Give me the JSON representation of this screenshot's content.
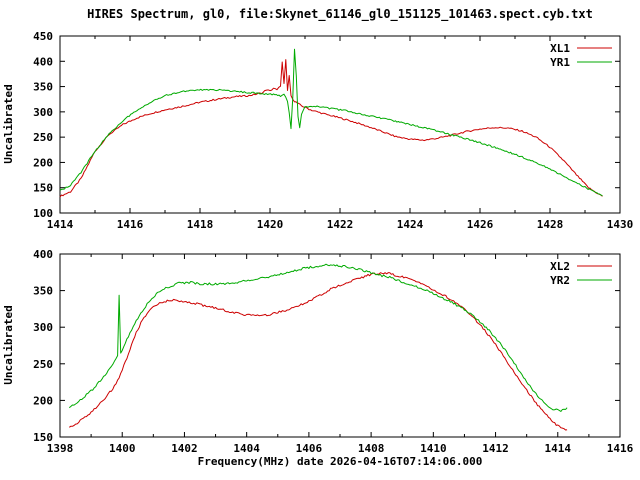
{
  "title": "HIRES Spectrum, gl0, file:Skynet_61146_gl0_151125_101463.spect.cyb.txt",
  "colors": {
    "red": "#cc0000",
    "green": "#00aa00",
    "axis": "#000000",
    "background": "#ffffff"
  },
  "chart_data": [
    {
      "type": "line",
      "title": "",
      "xlabel": "",
      "ylabel": "Uncalibrated",
      "xlim": [
        1414,
        1430
      ],
      "ylim": [
        100,
        450
      ],
      "xticks": [
        1414,
        1416,
        1418,
        1420,
        1422,
        1424,
        1426,
        1428,
        1430
      ],
      "yticks": [
        100,
        150,
        200,
        250,
        300,
        350,
        400,
        450
      ],
      "grid": false,
      "legend_position": "top-right",
      "series": [
        {
          "name": "XL1",
          "color": "#cc0000",
          "points": [
            [
              1414.0,
              133
            ],
            [
              1414.3,
              142
            ],
            [
              1414.6,
              168
            ],
            [
              1415.0,
              222
            ],
            [
              1415.4,
              255
            ],
            [
              1415.8,
              275
            ],
            [
              1416.2,
              288
            ],
            [
              1416.6,
              297
            ],
            [
              1417.0,
              304
            ],
            [
              1417.5,
              311
            ],
            [
              1418.0,
              319
            ],
            [
              1418.5,
              325
            ],
            [
              1419.0,
              330
            ],
            [
              1419.4,
              332
            ],
            [
              1419.8,
              338
            ],
            [
              1419.9,
              344
            ],
            [
              1420.0,
              341
            ],
            [
              1420.1,
              347
            ],
            [
              1420.2,
              343
            ],
            [
              1420.3,
              352
            ],
            [
              1420.35,
              398
            ],
            [
              1420.4,
              355
            ],
            [
              1420.45,
              402
            ],
            [
              1420.5,
              342
            ],
            [
              1420.55,
              372
            ],
            [
              1420.6,
              331
            ],
            [
              1420.7,
              321
            ],
            [
              1420.9,
              312
            ],
            [
              1421.2,
              303
            ],
            [
              1421.6,
              295
            ],
            [
              1422.0,
              288
            ],
            [
              1422.4,
              280
            ],
            [
              1422.8,
              271
            ],
            [
              1423.2,
              261
            ],
            [
              1423.6,
              251
            ],
            [
              1424.0,
              246
            ],
            [
              1424.4,
              244
            ],
            [
              1424.8,
              248
            ],
            [
              1425.2,
              254
            ],
            [
              1425.6,
              261
            ],
            [
              1426.0,
              266
            ],
            [
              1426.4,
              269
            ],
            [
              1426.8,
              268
            ],
            [
              1427.2,
              262
            ],
            [
              1427.6,
              250
            ],
            [
              1428.0,
              230
            ],
            [
              1428.4,
              203
            ],
            [
              1428.8,
              172
            ],
            [
              1429.1,
              150
            ],
            [
              1429.4,
              137
            ],
            [
              1429.5,
              133
            ]
          ]
        },
        {
          "name": "YR1",
          "color": "#00aa00",
          "points": [
            [
              1414.0,
              144
            ],
            [
              1414.3,
              155
            ],
            [
              1414.6,
              180
            ],
            [
              1415.0,
              222
            ],
            [
              1415.4,
              256
            ],
            [
              1415.8,
              283
            ],
            [
              1416.2,
              303
            ],
            [
              1416.6,
              320
            ],
            [
              1417.0,
              332
            ],
            [
              1417.4,
              339
            ],
            [
              1417.8,
              343
            ],
            [
              1418.2,
              344
            ],
            [
              1418.6,
              343
            ],
            [
              1419.0,
              341
            ],
            [
              1419.4,
              338
            ],
            [
              1419.8,
              336
            ],
            [
              1420.1,
              334
            ],
            [
              1420.3,
              331
            ],
            [
              1420.4,
              335
            ],
            [
              1420.5,
              320
            ],
            [
              1420.55,
              298
            ],
            [
              1420.6,
              268
            ],
            [
              1420.65,
              330
            ],
            [
              1420.7,
              424
            ],
            [
              1420.75,
              370
            ],
            [
              1420.8,
              292
            ],
            [
              1420.85,
              268
            ],
            [
              1420.9,
              295
            ],
            [
              1421.0,
              310
            ],
            [
              1421.3,
              311
            ],
            [
              1421.7,
              307
            ],
            [
              1422.1,
              303
            ],
            [
              1422.5,
              297
            ],
            [
              1423.0,
              290
            ],
            [
              1423.5,
              283
            ],
            [
              1424.0,
              275
            ],
            [
              1424.5,
              267
            ],
            [
              1425.0,
              258
            ],
            [
              1425.5,
              249
            ],
            [
              1426.0,
              239
            ],
            [
              1426.5,
              228
            ],
            [
              1427.0,
              216
            ],
            [
              1427.5,
              203
            ],
            [
              1428.0,
              187
            ],
            [
              1428.5,
              169
            ],
            [
              1429.0,
              151
            ],
            [
              1429.3,
              140
            ],
            [
              1429.5,
              134
            ]
          ]
        }
      ]
    },
    {
      "type": "line",
      "title": "",
      "xlabel": "Frequency(MHz) date 2026-04-16T07:14:06.000",
      "ylabel": "Uncalibrated",
      "xlim": [
        1398,
        1416
      ],
      "ylim": [
        150,
        400
      ],
      "xticks": [
        1398,
        1400,
        1402,
        1404,
        1406,
        1408,
        1410,
        1412,
        1414,
        1416
      ],
      "yticks": [
        150,
        200,
        250,
        300,
        350,
        400
      ],
      "grid": false,
      "legend_position": "top-right",
      "series": [
        {
          "name": "XL2",
          "color": "#cc0000",
          "points": [
            [
              1398.3,
              162
            ],
            [
              1398.6,
              170
            ],
            [
              1399.0,
              184
            ],
            [
              1399.4,
              200
            ],
            [
              1399.8,
              222
            ],
            [
              1400.1,
              252
            ],
            [
              1400.4,
              288
            ],
            [
              1400.7,
              314
            ],
            [
              1401.0,
              328
            ],
            [
              1401.3,
              335
            ],
            [
              1401.6,
              337
            ],
            [
              1402.0,
              335
            ],
            [
              1402.4,
              332
            ],
            [
              1402.8,
              328
            ],
            [
              1403.2,
              324
            ],
            [
              1403.6,
              320
            ],
            [
              1404.0,
              317
            ],
            [
              1404.4,
              316
            ],
            [
              1404.8,
              318
            ],
            [
              1405.2,
              322
            ],
            [
              1405.6,
              328
            ],
            [
              1406.0,
              336
            ],
            [
              1406.4,
              345
            ],
            [
              1406.8,
              354
            ],
            [
              1407.2,
              361
            ],
            [
              1407.6,
              367
            ],
            [
              1408.0,
              372
            ],
            [
              1408.3,
              374
            ],
            [
              1408.6,
              373
            ],
            [
              1409.0,
              369
            ],
            [
              1409.4,
              363
            ],
            [
              1409.8,
              356
            ],
            [
              1410.2,
              347
            ],
            [
              1410.6,
              337
            ],
            [
              1411.0,
              324
            ],
            [
              1411.4,
              308
            ],
            [
              1411.8,
              288
            ],
            [
              1412.2,
              264
            ],
            [
              1412.6,
              238
            ],
            [
              1413.0,
              214
            ],
            [
              1413.4,
              191
            ],
            [
              1413.8,
              172
            ],
            [
              1414.1,
              162
            ],
            [
              1414.3,
              160
            ]
          ]
        },
        {
          "name": "YR2",
          "color": "#00aa00",
          "points": [
            [
              1398.3,
              191
            ],
            [
              1398.6,
              199
            ],
            [
              1399.0,
              213
            ],
            [
              1399.4,
              232
            ],
            [
              1399.7,
              250
            ],
            [
              1399.85,
              260
            ],
            [
              1399.9,
              344
            ],
            [
              1399.95,
              264
            ],
            [
              1400.2,
              288
            ],
            [
              1400.5,
              312
            ],
            [
              1400.8,
              332
            ],
            [
              1401.1,
              346
            ],
            [
              1401.4,
              354
            ],
            [
              1401.8,
              360
            ],
            [
              1402.2,
              361
            ],
            [
              1402.6,
              359
            ],
            [
              1403.0,
              359
            ],
            [
              1403.4,
              360
            ],
            [
              1403.8,
              362
            ],
            [
              1404.2,
              365
            ],
            [
              1404.6,
              368
            ],
            [
              1405.0,
              372
            ],
            [
              1405.4,
              376
            ],
            [
              1405.8,
              380
            ],
            [
              1406.2,
              383
            ],
            [
              1406.6,
              385
            ],
            [
              1407.0,
              384
            ],
            [
              1407.4,
              381
            ],
            [
              1407.8,
              377
            ],
            [
              1408.2,
              372
            ],
            [
              1408.6,
              368
            ],
            [
              1409.0,
              362
            ],
            [
              1409.4,
              356
            ],
            [
              1409.8,
              350
            ],
            [
              1410.2,
              342
            ],
            [
              1410.6,
              334
            ],
            [
              1411.0,
              324
            ],
            [
              1411.4,
              311
            ],
            [
              1411.8,
              295
            ],
            [
              1412.2,
              275
            ],
            [
              1412.6,
              251
            ],
            [
              1413.0,
              226
            ],
            [
              1413.4,
              203
            ],
            [
              1413.8,
              189
            ],
            [
              1414.1,
              185
            ],
            [
              1414.3,
              190
            ]
          ]
        }
      ]
    }
  ]
}
